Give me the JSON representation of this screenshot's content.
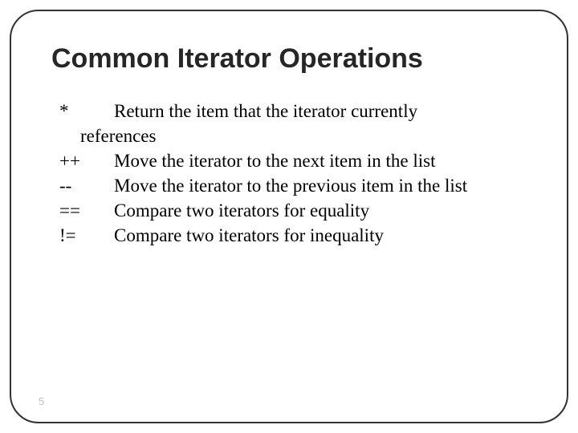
{
  "title": "Common Iterator Operations",
  "title_fontsize": 34,
  "title_color": "#262626",
  "body_fontsize": 23,
  "body_color": "#000000",
  "border_color": "#333333",
  "border_radius": 36,
  "background_color": "#ffffff",
  "page_number": "5",
  "page_number_color": "#bfbfbf",
  "page_number_fontsize": 13,
  "rows": [
    {
      "op": "*",
      "desc": "Return the item that the iterator currently",
      "cont": "references"
    },
    {
      "op": "++",
      "desc": "Move the iterator to the next item in the list"
    },
    {
      "op": "--",
      "desc": "Move the iterator to the previous item in the list"
    },
    {
      "op": "==",
      "desc": "Compare two iterators for equality"
    },
    {
      "op": "!=",
      "desc": "Compare two iterators for inequality"
    }
  ]
}
